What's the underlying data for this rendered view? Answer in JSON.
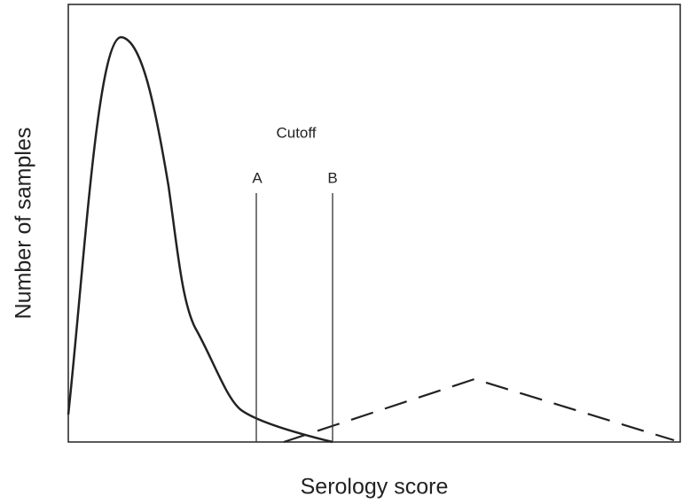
{
  "axes": {
    "x_label": "Serology score",
    "y_label": "Number of samples"
  },
  "annotations": {
    "cutoff": "Cutoff",
    "line_a": "A",
    "line_b": "B"
  }
}
